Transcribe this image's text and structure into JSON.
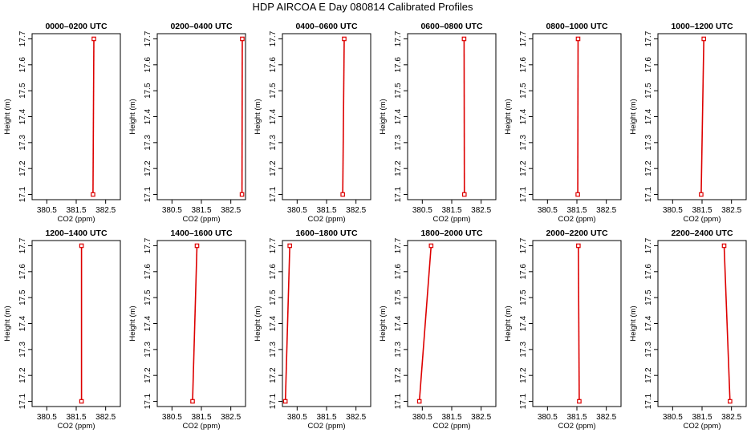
{
  "title": "HDP AIRCOA E  Day 080814  Calibrated Profiles",
  "chart_data": {
    "type": "line",
    "layout": "2 rows x 6 columns of small multiples",
    "xlabel": "CO2 (ppm)",
    "ylabel": "Height (m)",
    "xlim": [
      380.0,
      383.0
    ],
    "ylim": [
      17.08,
      17.72
    ],
    "xticks": [
      380.5,
      381.5,
      382.5
    ],
    "xtick_labels": [
      "380.5",
      "381.5",
      "382.5"
    ],
    "yticks": [
      17.1,
      17.2,
      17.3,
      17.4,
      17.5,
      17.6,
      17.7
    ],
    "ytick_labels": [
      "17.1",
      "17.2",
      "17.3",
      "17.4",
      "17.5",
      "17.6",
      "17.7"
    ],
    "line_color": "#dd0000",
    "marker": "open-square",
    "marker_color": "#dd0000",
    "grid": false,
    "panels": [
      {
        "title": "0000–0200 UTC",
        "points": [
          {
            "x": 382.07,
            "y": 17.1
          },
          {
            "x": 382.1,
            "y": 17.7
          }
        ]
      },
      {
        "title": "0200–0400 UTC",
        "points": [
          {
            "x": 382.88,
            "y": 17.1
          },
          {
            "x": 382.89,
            "y": 17.7
          }
        ]
      },
      {
        "title": "0400–0600 UTC",
        "points": [
          {
            "x": 382.05,
            "y": 17.1
          },
          {
            "x": 382.1,
            "y": 17.7
          }
        ]
      },
      {
        "title": "0600–0800 UTC",
        "points": [
          {
            "x": 381.93,
            "y": 17.1
          },
          {
            "x": 381.92,
            "y": 17.7
          }
        ]
      },
      {
        "title": "0800–1000 UTC",
        "points": [
          {
            "x": 381.53,
            "y": 17.1
          },
          {
            "x": 381.54,
            "y": 17.7
          }
        ]
      },
      {
        "title": "1000–1200 UTC",
        "points": [
          {
            "x": 381.47,
            "y": 17.1
          },
          {
            "x": 381.56,
            "y": 17.7
          }
        ]
      },
      {
        "title": "1200–1400 UTC",
        "points": [
          {
            "x": 381.68,
            "y": 17.1
          },
          {
            "x": 381.68,
            "y": 17.7
          }
        ]
      },
      {
        "title": "1400–1600 UTC",
        "points": [
          {
            "x": 381.2,
            "y": 17.1
          },
          {
            "x": 381.35,
            "y": 17.7
          }
        ]
      },
      {
        "title": "1600–1800 UTC",
        "points": [
          {
            "x": 380.1,
            "y": 17.1
          },
          {
            "x": 380.25,
            "y": 17.7
          }
        ]
      },
      {
        "title": "1800–2000 UTC",
        "points": [
          {
            "x": 380.4,
            "y": 17.1
          },
          {
            "x": 380.8,
            "y": 17.7
          }
        ]
      },
      {
        "title": "2000–2200 UTC",
        "points": [
          {
            "x": 381.58,
            "y": 17.1
          },
          {
            "x": 381.55,
            "y": 17.7
          }
        ]
      },
      {
        "title": "2200–2400 UTC",
        "points": [
          {
            "x": 382.45,
            "y": 17.1
          },
          {
            "x": 382.25,
            "y": 17.7
          }
        ]
      }
    ]
  }
}
